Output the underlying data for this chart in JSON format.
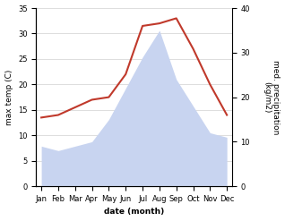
{
  "months": [
    "Jan",
    "Feb",
    "Mar",
    "Apr",
    "May",
    "Jun",
    "Jul",
    "Aug",
    "Sep",
    "Oct",
    "Nov",
    "Dec"
  ],
  "temp_max": [
    13.5,
    14.0,
    15.5,
    17.0,
    17.5,
    22.0,
    31.5,
    32.0,
    33.0,
    27.0,
    20.0,
    14.0
  ],
  "precipitation": [
    9,
    8,
    9,
    10,
    15,
    22,
    29,
    35,
    24,
    18,
    12,
    11
  ],
  "temp_color": "#c0392b",
  "precip_fill_color": "#c8d4f0",
  "ylabel_left": "max temp (C)",
  "ylabel_right": "med. precipitation\n(kg/m2)",
  "xlabel": "date (month)",
  "ylim_left": [
    0,
    35
  ],
  "ylim_right": [
    0,
    40
  ],
  "yticks_left": [
    0,
    5,
    10,
    15,
    20,
    25,
    30,
    35
  ],
  "yticks_right": [
    0,
    10,
    20,
    30,
    40
  ],
  "bg_color": "#ffffff",
  "grid_color": "#d0d0d0",
  "title_fontsize": 7,
  "label_fontsize": 6.5,
  "tick_fontsize": 6
}
